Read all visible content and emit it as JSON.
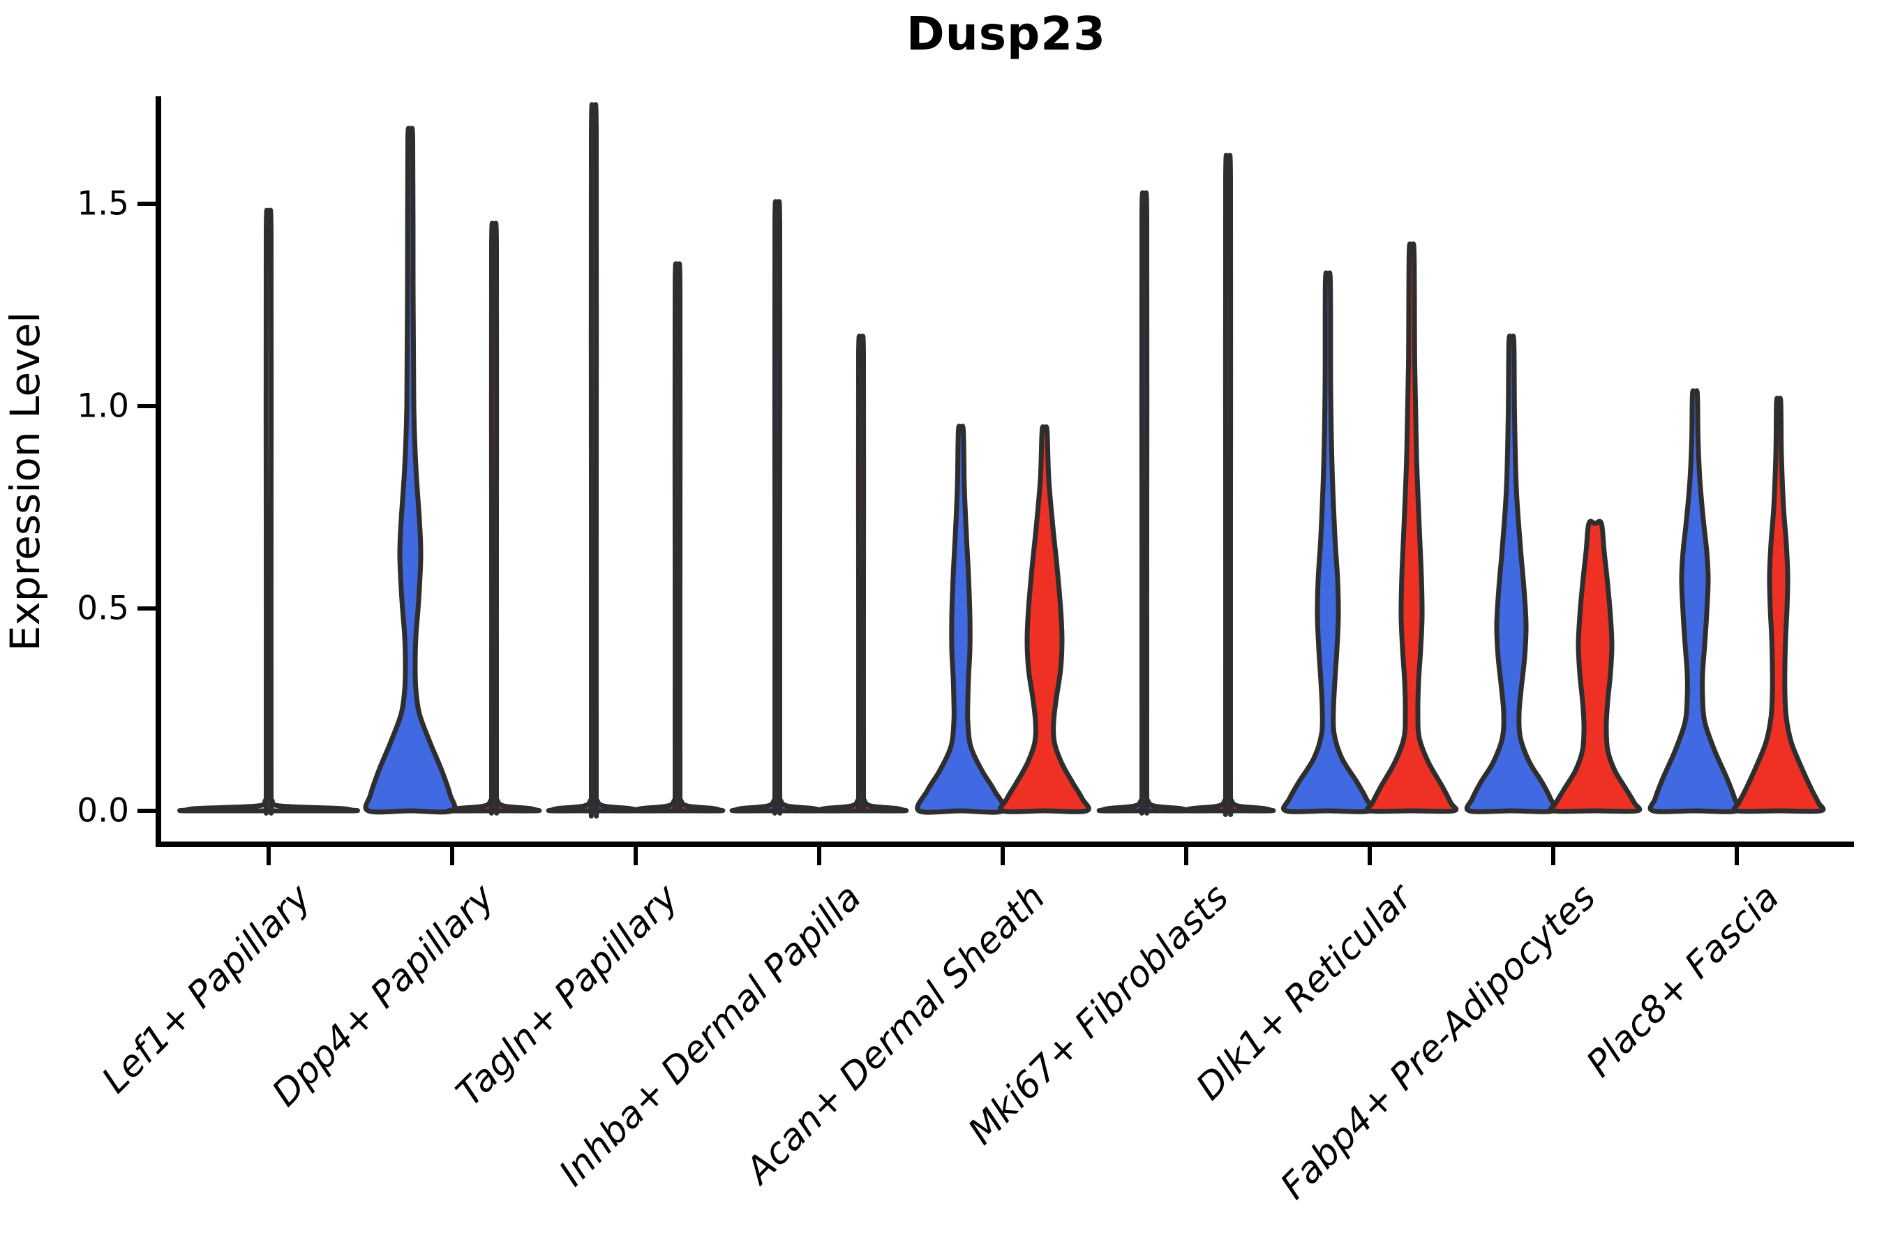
{
  "page": {
    "title": "Dusp23"
  },
  "chart_data": {
    "type": "violin",
    "title": "Dusp23",
    "xlabel": "",
    "ylabel": "Expression Level",
    "ylim": [
      0,
      1.77
    ],
    "grid": false,
    "legend_position": "none",
    "yticks": [
      {
        "label": "0.0",
        "value": 0.0
      },
      {
        "label": "0.5",
        "value": 0.5
      },
      {
        "label": "1.0",
        "value": 1.0
      },
      {
        "label": "1.5",
        "value": 1.5
      }
    ],
    "categories": [
      "Lef1+ Papillary",
      "Dpp4+ Papillary",
      "Tagln+ Papillary",
      "Inhba+ Dermal Papilla",
      "Acan+ Dermal Sheath",
      "Mki67+ Fibroblasts",
      "Dlk1+ Reticular",
      "Fabp4+ Pre-Adipocytes",
      "Plac8+ Fascia"
    ],
    "groups": [
      {
        "id": "blue",
        "color": "#4169e1"
      },
      {
        "id": "red",
        "color": "#ee3124"
      }
    ],
    "style": {
      "outline_color": "#2e2e2e",
      "outline_width": 7,
      "axis_color": "#000000"
    },
    "violins": [
      {
        "category": "Lef1+ Papillary",
        "cat": 0,
        "group": "single",
        "max": 1.43,
        "profile": [
          [
            1.43,
            0
          ],
          [
            1.43,
            3.5
          ],
          [
            0.7,
            3.5
          ],
          [
            0.05,
            3.5
          ],
          [
            0.025,
            5
          ],
          [
            0.012,
            16
          ],
          [
            0.006,
            100
          ],
          [
            0.002,
            118
          ],
          [
            0,
            118
          ]
        ]
      },
      {
        "category": "Dpp4+ Papillary",
        "cat": 1,
        "group": "blue",
        "max": 1.66,
        "profile": [
          [
            1.66,
            0
          ],
          [
            1.66,
            3.5
          ],
          [
            1.3,
            4
          ],
          [
            1.0,
            5
          ],
          [
            0.85,
            8
          ],
          [
            0.72,
            13
          ],
          [
            0.63,
            15
          ],
          [
            0.52,
            12
          ],
          [
            0.43,
            8
          ],
          [
            0.36,
            7
          ],
          [
            0.3,
            8
          ],
          [
            0.24,
            13
          ],
          [
            0.17,
            28
          ],
          [
            0.1,
            45
          ],
          [
            0.04,
            57
          ],
          [
            0,
            60
          ]
        ]
      },
      {
        "category": "Dpp4+ Papillary",
        "cat": 1,
        "group": "red",
        "max": 1.4,
        "profile": [
          [
            1.4,
            0
          ],
          [
            1.4,
            3.5
          ],
          [
            0.7,
            3.5
          ],
          [
            0.05,
            3.5
          ],
          [
            0.025,
            5
          ],
          [
            0.012,
            14
          ],
          [
            0.006,
            50
          ],
          [
            0.002,
            60
          ],
          [
            0,
            60
          ]
        ]
      },
      {
        "category": "Tagln+ Papillary",
        "cat": 2,
        "group": "blue",
        "max": 1.68,
        "profile": [
          [
            1.68,
            0
          ],
          [
            1.68,
            3.5
          ],
          [
            0.8,
            3.5
          ],
          [
            0.05,
            3.5
          ],
          [
            0.025,
            5
          ],
          [
            0.012,
            14
          ],
          [
            0.006,
            50
          ],
          [
            0.002,
            60
          ],
          [
            0,
            60
          ]
        ]
      },
      {
        "category": "Tagln+ Papillary",
        "cat": 2,
        "group": "red",
        "max": 1.3,
        "profile": [
          [
            1.3,
            0
          ],
          [
            1.3,
            3.5
          ],
          [
            0.6,
            3.5
          ],
          [
            0.05,
            3.5
          ],
          [
            0.025,
            5
          ],
          [
            0.012,
            14
          ],
          [
            0.006,
            50
          ],
          [
            0.002,
            60
          ],
          [
            0,
            60
          ]
        ]
      },
      {
        "category": "Inhba+ Dermal Papilla",
        "cat": 3,
        "group": "blue",
        "max": 1.45,
        "profile": [
          [
            1.45,
            0
          ],
          [
            1.45,
            3.5
          ],
          [
            0.7,
            3.5
          ],
          [
            0.05,
            3.5
          ],
          [
            0.025,
            5
          ],
          [
            0.012,
            14
          ],
          [
            0.006,
            50
          ],
          [
            0.002,
            60
          ],
          [
            0,
            60
          ]
        ]
      },
      {
        "category": "Inhba+ Dermal Papilla",
        "cat": 3,
        "group": "red",
        "max": 1.13,
        "profile": [
          [
            1.13,
            0
          ],
          [
            1.13,
            3.5
          ],
          [
            0.55,
            3.5
          ],
          [
            0.05,
            3.5
          ],
          [
            0.025,
            5
          ],
          [
            0.012,
            14
          ],
          [
            0.006,
            50
          ],
          [
            0.002,
            60
          ],
          [
            0,
            60
          ]
        ]
      },
      {
        "category": "Acan+ Dermal Sheath",
        "cat": 4,
        "group": "blue",
        "max": 0.94,
        "profile": [
          [
            0.94,
            0
          ],
          [
            0.94,
            3.5
          ],
          [
            0.8,
            5
          ],
          [
            0.68,
            8
          ],
          [
            0.58,
            11
          ],
          [
            0.48,
            13
          ],
          [
            0.4,
            13
          ],
          [
            0.33,
            11
          ],
          [
            0.27,
            10
          ],
          [
            0.22,
            10
          ],
          [
            0.16,
            14
          ],
          [
            0.1,
            30
          ],
          [
            0.05,
            48
          ],
          [
            0,
            60
          ]
        ]
      },
      {
        "category": "Acan+ Dermal Sheath",
        "cat": 4,
        "group": "red",
        "max": 0.94,
        "profile": [
          [
            0.94,
            0
          ],
          [
            0.94,
            3.5
          ],
          [
            0.82,
            6
          ],
          [
            0.7,
            12
          ],
          [
            0.6,
            18
          ],
          [
            0.5,
            23
          ],
          [
            0.42,
            25
          ],
          [
            0.35,
            23
          ],
          [
            0.28,
            17
          ],
          [
            0.22,
            13
          ],
          [
            0.17,
            14
          ],
          [
            0.12,
            24
          ],
          [
            0.07,
            40
          ],
          [
            0.03,
            54
          ],
          [
            0,
            60
          ]
        ]
      },
      {
        "category": "Mki67+ Fibroblasts",
        "cat": 5,
        "group": "blue",
        "max": 1.47,
        "profile": [
          [
            1.47,
            0
          ],
          [
            1.47,
            3.5
          ],
          [
            0.7,
            3.5
          ],
          [
            0.05,
            3.5
          ],
          [
            0.025,
            5
          ],
          [
            0.012,
            14
          ],
          [
            0.006,
            50
          ],
          [
            0.002,
            60
          ],
          [
            0,
            60
          ]
        ]
      },
      {
        "category": "Mki67+ Fibroblasts",
        "cat": 5,
        "group": "red",
        "max": 1.56,
        "profile": [
          [
            1.56,
            0
          ],
          [
            1.56,
            3.5
          ],
          [
            0.75,
            3.5
          ],
          [
            0.05,
            3.5
          ],
          [
            0.025,
            5
          ],
          [
            0.012,
            14
          ],
          [
            0.006,
            50
          ],
          [
            0.002,
            60
          ],
          [
            0,
            60
          ]
        ]
      },
      {
        "category": "Dlk1+ Reticular",
        "cat": 6,
        "group": "blue",
        "max": 1.31,
        "profile": [
          [
            1.31,
            0
          ],
          [
            1.31,
            3.5
          ],
          [
            1.05,
            4
          ],
          [
            0.85,
            6
          ],
          [
            0.68,
            10
          ],
          [
            0.57,
            14
          ],
          [
            0.48,
            15
          ],
          [
            0.4,
            13
          ],
          [
            0.32,
            10
          ],
          [
            0.25,
            8
          ],
          [
            0.19,
            9
          ],
          [
            0.13,
            20
          ],
          [
            0.07,
            42
          ],
          [
            0.03,
            55
          ],
          [
            0,
            60
          ]
        ]
      },
      {
        "category": "Dlk1+ Reticular",
        "cat": 6,
        "group": "red",
        "max": 1.38,
        "profile": [
          [
            1.38,
            0
          ],
          [
            1.38,
            3.5
          ],
          [
            1.1,
            4.5
          ],
          [
            0.88,
            7
          ],
          [
            0.7,
            11
          ],
          [
            0.58,
            14
          ],
          [
            0.48,
            15
          ],
          [
            0.4,
            13
          ],
          [
            0.32,
            10
          ],
          [
            0.24,
            9
          ],
          [
            0.18,
            11
          ],
          [
            0.12,
            24
          ],
          [
            0.06,
            44
          ],
          [
            0.02,
            56
          ],
          [
            0,
            60
          ]
        ]
      },
      {
        "category": "Fabp4+ Pre-Adipocytes",
        "cat": 7,
        "group": "blue",
        "max": 1.16,
        "profile": [
          [
            1.16,
            0
          ],
          [
            1.16,
            3.5
          ],
          [
            0.98,
            4.5
          ],
          [
            0.8,
            7
          ],
          [
            0.65,
            13
          ],
          [
            0.55,
            18
          ],
          [
            0.46,
            21
          ],
          [
            0.38,
            19
          ],
          [
            0.3,
            14
          ],
          [
            0.24,
            11
          ],
          [
            0.18,
            13
          ],
          [
            0.12,
            26
          ],
          [
            0.07,
            44
          ],
          [
            0.03,
            56
          ],
          [
            0,
            60
          ]
        ]
      },
      {
        "category": "Fabp4+ Pre-Adipocytes",
        "cat": 7,
        "group": "red",
        "max": 0.71,
        "profile": [
          [
            0.71,
            0
          ],
          [
            0.71,
            9
          ],
          [
            0.64,
            13
          ],
          [
            0.56,
            18
          ],
          [
            0.48,
            22
          ],
          [
            0.41,
            24
          ],
          [
            0.34,
            22
          ],
          [
            0.27,
            18
          ],
          [
            0.21,
            16
          ],
          [
            0.15,
            18
          ],
          [
            0.1,
            28
          ],
          [
            0.06,
            42
          ],
          [
            0.02,
            56
          ],
          [
            0,
            60
          ]
        ]
      },
      {
        "category": "Plac8+ Fascia",
        "cat": 8,
        "group": "blue",
        "max": 1.03,
        "profile": [
          [
            1.03,
            0
          ],
          [
            1.03,
            3.5
          ],
          [
            0.92,
            4.5
          ],
          [
            0.82,
            7
          ],
          [
            0.72,
            12
          ],
          [
            0.64,
            17
          ],
          [
            0.57,
            19
          ],
          [
            0.49,
            17
          ],
          [
            0.41,
            14
          ],
          [
            0.34,
            11
          ],
          [
            0.28,
            11
          ],
          [
            0.22,
            14
          ],
          [
            0.15,
            28
          ],
          [
            0.08,
            46
          ],
          [
            0.03,
            57
          ],
          [
            0,
            60
          ]
        ]
      },
      {
        "category": "Plac8+ Fascia",
        "cat": 8,
        "group": "red",
        "max": 1.01,
        "profile": [
          [
            1.01,
            0
          ],
          [
            1.01,
            3
          ],
          [
            0.88,
            4
          ],
          [
            0.75,
            7
          ],
          [
            0.66,
            11
          ],
          [
            0.58,
            13
          ],
          [
            0.5,
            12
          ],
          [
            0.43,
            10
          ],
          [
            0.36,
            9
          ],
          [
            0.29,
            9
          ],
          [
            0.23,
            11
          ],
          [
            0.17,
            18
          ],
          [
            0.11,
            32
          ],
          [
            0.05,
            48
          ],
          [
            0.02,
            57
          ],
          [
            0,
            60
          ]
        ]
      }
    ]
  }
}
